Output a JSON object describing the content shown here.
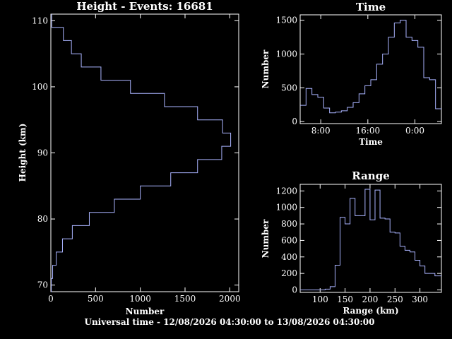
{
  "footer": "Universal time - 12/08/2026 04:30:00 to 13/08/2026 04:30:00",
  "chart_data": [
    {
      "id": "height",
      "type": "histogram",
      "orientation": "horizontal",
      "title": "Height - Events: 16681",
      "xlabel": "Number",
      "ylabel": "Height (km)",
      "xlim": [
        0,
        2100
      ],
      "ylim": [
        69,
        111
      ],
      "xticks": [
        0,
        500,
        1000,
        1500,
        2000
      ],
      "xtick_labels": [
        "0",
        "500",
        "1000",
        "1500",
        "2000"
      ],
      "yticks": [
        70,
        80,
        90,
        100,
        110
      ],
      "ytick_labels": [
        "70",
        "80",
        "90",
        "100",
        "110"
      ],
      "bin_edges": [
        69,
        71,
        73,
        75,
        77,
        79,
        81,
        83,
        85,
        87,
        89,
        91,
        93,
        95,
        97,
        99,
        101,
        103,
        105,
        107,
        109,
        111
      ],
      "values": [
        5,
        20,
        60,
        130,
        240,
        430,
        710,
        1000,
        1340,
        1640,
        1910,
        2010,
        1920,
        1640,
        1270,
        890,
        560,
        340,
        230,
        140,
        10
      ]
    },
    {
      "id": "time",
      "type": "histogram",
      "orientation": "vertical",
      "title": "Time",
      "xlabel": "Time",
      "ylabel": "Number",
      "xlim": [
        4.5,
        28.5
      ],
      "ylim": [
        -30,
        1580
      ],
      "xticks": [
        8,
        16,
        24
      ],
      "xtick_labels": [
        "8:00",
        "16:00",
        "0:00"
      ],
      "yticks": [
        0,
        500,
        1000,
        1500
      ],
      "ytick_labels": [
        "0",
        "500",
        "1000",
        "1500"
      ],
      "bin_edges": [
        4.5,
        5.5,
        6.5,
        7.5,
        8.5,
        9.5,
        10.5,
        11.5,
        12.5,
        13.5,
        14.5,
        15.5,
        16.5,
        17.5,
        18.5,
        19.5,
        20.5,
        21.5,
        22.5,
        23.5,
        24.5,
        25.5,
        26.5,
        27.5,
        28.5
      ],
      "values": [
        240,
        490,
        400,
        360,
        200,
        130,
        140,
        160,
        210,
        280,
        410,
        530,
        620,
        850,
        1000,
        1250,
        1460,
        1500,
        1250,
        1200,
        1100,
        650,
        620,
        190
      ]
    },
    {
      "id": "range",
      "type": "histogram",
      "orientation": "vertical",
      "title": "Range",
      "xlabel": "Range (km)",
      "ylabel": "Number",
      "xlim": [
        60,
        343
      ],
      "ylim": [
        -30,
        1280
      ],
      "xticks": [
        100,
        150,
        200,
        250,
        300
      ],
      "xtick_labels": [
        "100",
        "150",
        "200",
        "250",
        "300"
      ],
      "yticks": [
        0,
        200,
        400,
        600,
        800,
        1000,
        1200
      ],
      "ytick_labels": [
        "0",
        "200",
        "400",
        "600",
        "800",
        "1000",
        "1200"
      ],
      "bin_edges": [
        60,
        70,
        80,
        90,
        100,
        110,
        120,
        130,
        140,
        150,
        160,
        170,
        180,
        190,
        200,
        210,
        220,
        230,
        240,
        250,
        260,
        270,
        280,
        290,
        300,
        310,
        320,
        330,
        343
      ],
      "values": [
        0,
        0,
        0,
        0,
        0,
        10,
        40,
        300,
        880,
        800,
        1110,
        900,
        900,
        1220,
        850,
        1210,
        870,
        860,
        700,
        690,
        530,
        480,
        460,
        360,
        290,
        200,
        200,
        170
      ]
    }
  ]
}
